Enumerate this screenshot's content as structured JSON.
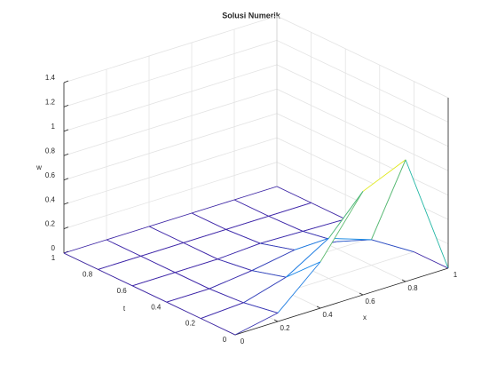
{
  "chart_data": {
    "type": "mesh3d",
    "title": "Solusi Numerik",
    "x_label": "x",
    "y_label": "t",
    "z_label": "w",
    "x": [
      0,
      0.2,
      0.4,
      0.6,
      0.8,
      1
    ],
    "y": [
      0,
      0.2,
      0.4,
      0.6,
      0.8,
      1
    ],
    "z": [
      [
        0,
        0.07,
        0.38,
        0.85,
        1.0,
        0
      ],
      [
        0,
        0.02,
        0.12,
        0.33,
        0.21,
        0
      ],
      [
        0,
        0,
        0.04,
        0.1,
        0.06,
        0
      ],
      [
        0,
        0,
        0,
        0.02,
        0.01,
        0
      ],
      [
        0,
        0,
        0,
        0,
        0,
        0
      ],
      [
        0,
        0,
        0,
        0,
        0,
        0
      ]
    ],
    "xlim": [
      0,
      1
    ],
    "xticks": [
      0,
      0.2,
      0.4,
      0.6,
      0.8,
      1
    ],
    "ylim": [
      0,
      1
    ],
    "yticks": [
      0,
      0.2,
      0.4,
      0.6,
      0.8,
      1
    ],
    "zlim": [
      0,
      1.4
    ],
    "zticks": [
      0,
      0.2,
      0.4,
      0.6,
      0.8,
      1,
      1.2,
      1.4
    ],
    "colormap": "parula",
    "grid": true
  }
}
